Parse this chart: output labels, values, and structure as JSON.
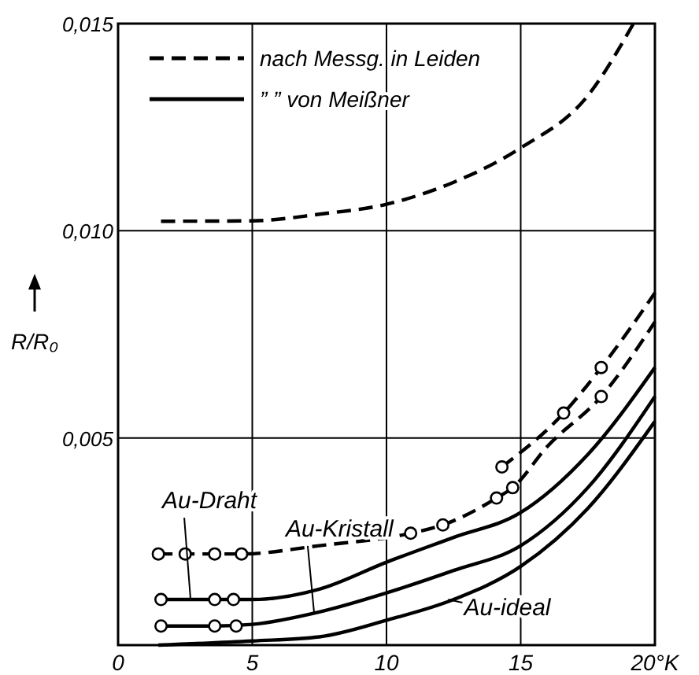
{
  "chart_data": {
    "type": "line",
    "ylabel": "R/R₀",
    "xlim": [
      0,
      20
    ],
    "ylim": [
      0,
      0.015
    ],
    "xticks": [
      0,
      5,
      10,
      15,
      {
        "value": 20,
        "label": "20°K"
      }
    ],
    "yticks": [
      {
        "value": 0,
        "label": null
      },
      {
        "value": 0.005,
        "label": "0,005"
      },
      {
        "value": 0.01,
        "label": "0,010"
      },
      {
        "value": 0.015,
        "label": "0,015"
      }
    ],
    "grid": true,
    "legend": "top left",
    "marker": "none",
    "series": [
      {
        "name": "nach Messg. in Leiden",
        "color": "#000000",
        "line_style": "dashed",
        "x": [
          1.6,
          5,
          7.5,
          10,
          12.5,
          15,
          17.5,
          19.2
        ],
        "values": [
          0.01023,
          0.01024,
          0.0104,
          0.01064,
          0.01117,
          0.012,
          0.01326,
          0.015
        ]
      },
      {
        "color": "#000000",
        "line_style": "dashed",
        "x": [
          1.5,
          2.5,
          3.6,
          4.6,
          7.5,
          10.9,
          12.1,
          14.1,
          14.7,
          16,
          18,
          20
        ],
        "values": [
          0.0022,
          0.0022,
          0.0022,
          0.0022,
          0.0024,
          0.0027,
          0.0029,
          0.00355,
          0.0038,
          0.0048,
          0.006,
          0.0078
        ]
      },
      {
        "color": "#000000",
        "line_style": "dashed",
        "x": [
          14.3,
          16.6,
          18,
          20
        ],
        "values": [
          0.0043,
          0.0056,
          0.0067,
          0.0085
        ]
      },
      {
        "name": "” ” von Meißner",
        "color": "#000000",
        "line_style": "solid",
        "x": [
          1.6,
          3.6,
          5,
          7.5,
          10,
          12.5,
          15,
          17.5,
          20
        ],
        "values": [
          0.0011,
          0.0011,
          0.0011,
          0.00135,
          0.002,
          0.0026,
          0.0032,
          0.0046,
          0.0067
        ]
      },
      {
        "color": "#000000",
        "line_style": "solid",
        "x": [
          1.6,
          3.6,
          5,
          7.5,
          10,
          12.5,
          15,
          17.5,
          20
        ],
        "values": [
          0.00046,
          0.00046,
          0.0005,
          0.0008,
          0.00126,
          0.0018,
          0.0024,
          0.0038,
          0.006
        ]
      },
      {
        "color": "#000000",
        "line_style": "solid",
        "x": [
          1.5,
          5,
          7.5,
          10,
          12.5,
          15,
          17.5,
          20
        ],
        "values": [
          0,
          0.0001,
          0.0002,
          0.0006,
          0.0011,
          0.0019,
          0.0033,
          0.0054
        ]
      },
      {
        "type": "scatter",
        "marker": "circle",
        "color": "#000000",
        "x": [
          1.5,
          2.5,
          3.6,
          4.6,
          10.9,
          12.1,
          14.1,
          14.7,
          18,
          14.3,
          16.6,
          18,
          1.6,
          3.6,
          4.3,
          1.6,
          3.6,
          4.4
        ],
        "values": [
          0.0022,
          0.0022,
          0.0022,
          0.0022,
          0.0027,
          0.0029,
          0.00355,
          0.0038,
          0.006,
          0.0043,
          0.0056,
          0.0067,
          0.0011,
          0.0011,
          0.0011,
          0.00046,
          0.00046,
          0.00046
        ]
      }
    ],
    "annotations": [
      {
        "text": "Au-Draht",
        "x": 2.7,
        "y": 0.0011
      },
      {
        "text": "Au-Kristall",
        "x": 7.3,
        "y": 0.0008
      },
      {
        "text": "Au-ideal",
        "x": 12.3,
        "y": 0.0011
      }
    ]
  }
}
